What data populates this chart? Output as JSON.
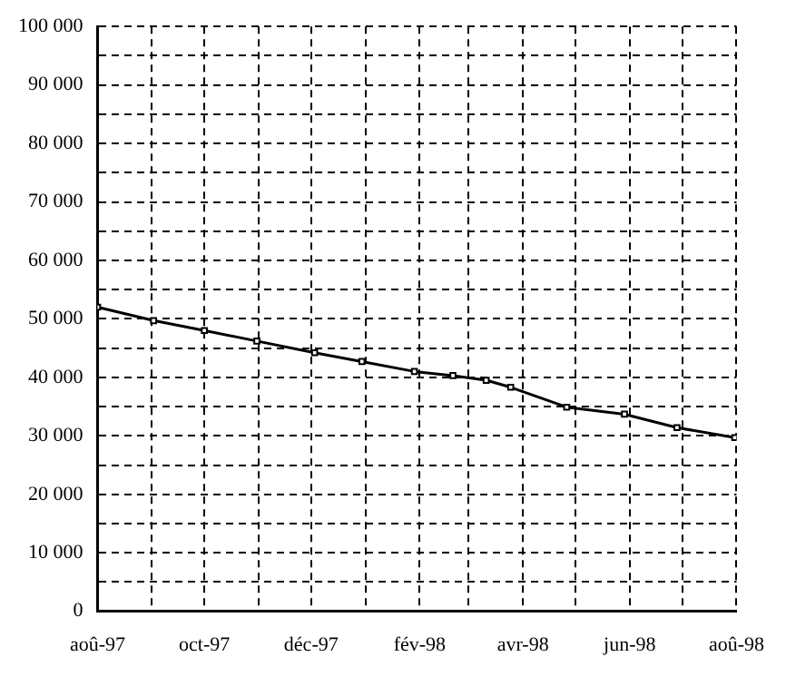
{
  "chart_data": {
    "type": "line",
    "x": [
      "1997-08-01",
      "1997-09-02",
      "1997-10-01",
      "1997-10-31",
      "1997-12-03",
      "1997-12-30",
      "1998-01-29",
      "1998-02-20",
      "1998-03-11",
      "1998-03-25",
      "1998-04-26",
      "1998-05-29",
      "1998-06-28",
      "1998-07-31"
    ],
    "series": [
      {
        "color": "#000000",
        "values": [
          52000,
          49700,
          48000,
          46200,
          44200,
          42700,
          41000,
          40300,
          39500,
          38300,
          34900,
          33700,
          31400,
          29700
        ]
      }
    ],
    "xlim": [
      "1997-08-01",
      "1998-08-01"
    ],
    "xticks": [
      {
        "value": "1997-08",
        "label": "aoû-97"
      },
      {
        "value": "1997-09",
        "label": null
      },
      {
        "value": "1997-10",
        "label": "oct-97"
      },
      {
        "value": "1997-11",
        "label": null
      },
      {
        "value": "1997-12",
        "label": "déc-97"
      },
      {
        "value": "1998-01",
        "label": null
      },
      {
        "value": "1998-02",
        "label": "fév-98"
      },
      {
        "value": "1998-03",
        "label": null
      },
      {
        "value": "1998-04",
        "label": "avr-98"
      },
      {
        "value": "1998-05",
        "label": null
      },
      {
        "value": "1998-06",
        "label": "jun-98"
      },
      {
        "value": "1998-07",
        "label": null
      },
      {
        "value": "1998-08",
        "label": "aoû-98"
      }
    ],
    "ylim": [
      0,
      100000
    ],
    "yticks": [
      0,
      {
        "value": 5000,
        "label": null
      },
      {
        "value": 10000,
        "label": "10 000"
      },
      {
        "value": 15000,
        "label": null
      },
      {
        "value": 20000,
        "label": "20 000"
      },
      {
        "value": 25000,
        "label": null
      },
      {
        "value": 30000,
        "label": "30 000"
      },
      {
        "value": 35000,
        "label": null
      },
      {
        "value": 40000,
        "label": "40 000"
      },
      {
        "value": 45000,
        "label": null
      },
      {
        "value": 50000,
        "label": "50 000"
      },
      {
        "value": 55000,
        "label": null
      },
      {
        "value": 60000,
        "label": "60 000"
      },
      {
        "value": 65000,
        "label": null
      },
      {
        "value": 70000,
        "label": "70 000"
      },
      {
        "value": 75000,
        "label": null
      },
      {
        "value": 80000,
        "label": "80 000"
      },
      {
        "value": 85000,
        "label": null
      },
      {
        "value": 90000,
        "label": "90 000"
      },
      {
        "value": 95000,
        "label": null
      },
      {
        "value": 100000,
        "label": "100 000"
      }
    ],
    "grid": true,
    "legend": false,
    "marker": "square",
    "line_style": "solid"
  }
}
